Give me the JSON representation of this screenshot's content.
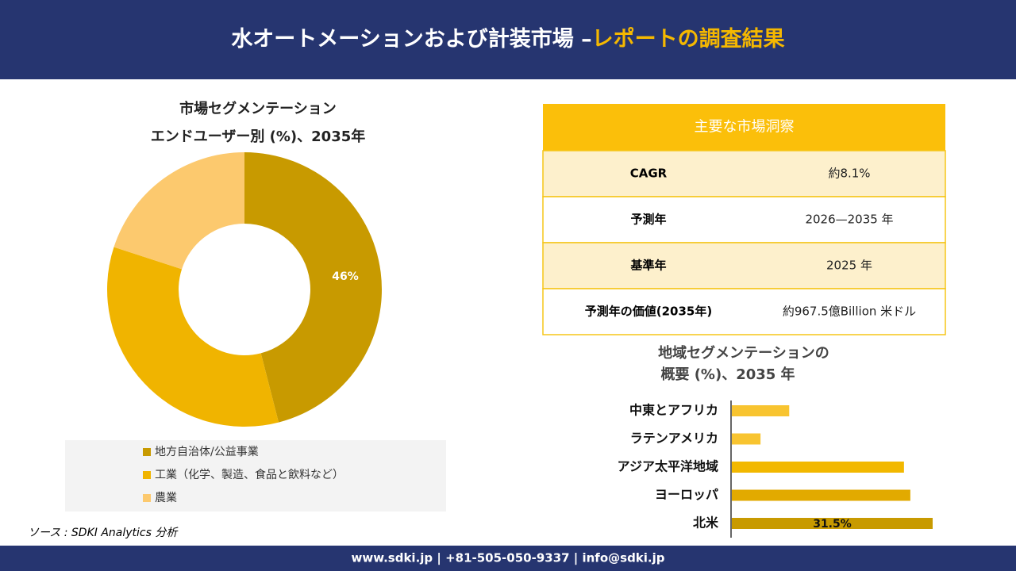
{
  "header": {
    "title": "水オートメーションおよび計装市場 –",
    "title_highlight": "レポートの調査結果"
  },
  "chart_data": [
    {
      "type": "pie",
      "title": "市場セグメンテーション",
      "subtitle": "エンドユーザー別 (%)、2035年",
      "categories": [
        "地方自治体/公益事業",
        "工業（化学、製造、食品と飲料など）",
        "農業"
      ],
      "values": [
        46,
        34,
        20
      ],
      "value_labels": [
        "46%",
        null,
        null
      ],
      "colors": [
        "#c89a00",
        "#f0b400",
        "#fcc96e"
      ]
    },
    {
      "type": "hbar",
      "title": "地域セグメンテーションの",
      "subtitle": "概要 (%)、2035 年",
      "categories": [
        "中東とアフリカ",
        "ラテンアメリカ",
        "アジア太平洋地域",
        "ヨーロッパ",
        "北米"
      ],
      "values": [
        9,
        4.5,
        27,
        28,
        31.5
      ],
      "value_labels": [
        null,
        null,
        null,
        null,
        "31.5%"
      ],
      "colors": [
        "#f8c430",
        "#f8c430",
        "#f2b800",
        "#e2aa00",
        "#c89a00"
      ]
    }
  ],
  "table": {
    "title": "主要な市場洞察",
    "rows": [
      [
        "CAGR",
        "約8.1%"
      ],
      [
        "予測年",
        "2026—2035 年"
      ],
      [
        "基準年",
        "2025 年"
      ],
      [
        "予測年の価値(2035年)",
        "約967.5億Billion 米ドル"
      ]
    ]
  },
  "source": "ソース : SDKI Analytics 分析",
  "footer": "www.sdki.jp | +81-505-050-9337 | info@sdki.jp"
}
